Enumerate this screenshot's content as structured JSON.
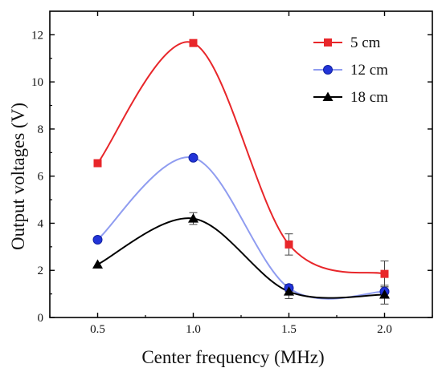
{
  "chart_data": {
    "type": "line",
    "xlabel": "Center frequency (MHz)",
    "ylabel": "Output voltages (V)",
    "x": [
      0.5,
      1.0,
      1.5,
      2.0
    ],
    "x_ticks": [
      "0.5",
      "1.0",
      "1.5",
      "2.0"
    ],
    "y_ticks": [
      "0",
      "2",
      "4",
      "6",
      "8",
      "10",
      "12"
    ],
    "xlim": [
      0.25,
      2.25
    ],
    "ylim": [
      0,
      13
    ],
    "grid": false,
    "legend_position": "top-right",
    "series": [
      {
        "name": "5 cm",
        "values": [
          6.55,
          11.65,
          3.1,
          1.85
        ],
        "error": [
          0.0,
          0.0,
          0.45,
          0.55
        ],
        "color": "#e8262a",
        "marker": "square"
      },
      {
        "name": "12 cm",
        "values": [
          3.3,
          6.78,
          1.25,
          1.1
        ],
        "error": [
          0.0,
          0.0,
          0.15,
          0.2
        ],
        "color": "#8f9cf0",
        "marker": "circle"
      },
      {
        "name": "18 cm",
        "values": [
          2.25,
          4.2,
          1.1,
          0.97
        ],
        "error": [
          0.0,
          0.25,
          0.3,
          0.4
        ],
        "color": "#000000",
        "marker": "triangle"
      }
    ]
  }
}
